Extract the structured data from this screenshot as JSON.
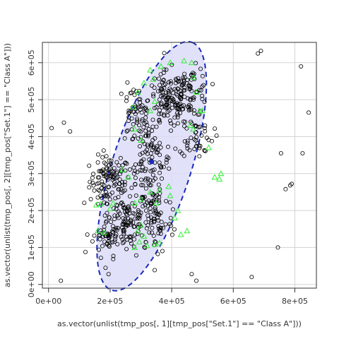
{
  "chart_data": {
    "type": "scatter",
    "title": "",
    "xlabel": "as.vector(unlist(tmp_pos[, 1][tmp_pos[\"Set.1\"] == \"Class A\"]))",
    "ylabel": "as.vector(unlist(tmp_pos[, 2][tmp_pos[\"Set.1\"] == \"Class A\"]))",
    "xlim": [
      -20000,
      870000
    ],
    "ylim": [
      -10000,
      655000
    ],
    "x_ticks": [
      0,
      200000,
      400000,
      600000,
      800000
    ],
    "x_tick_labels": [
      "0e+00",
      "2e+05",
      "4e+05",
      "6e+05",
      "8e+05"
    ],
    "y_ticks": [
      0,
      100000,
      200000,
      300000,
      400000,
      500000,
      600000
    ],
    "y_tick_labels": [
      "0e+00",
      "1e+05",
      "2e+05",
      "3e+05",
      "4e+05",
      "5e+05",
      "6e+05"
    ],
    "grid": true,
    "colors": {
      "points_black": "#000000",
      "points_green": "#33ee33",
      "ellipse_fill": "#dcdcf8",
      "ellipse_stroke": "#1a2bb8",
      "centroid": "#1a2bb8",
      "grid": "#d3d3d3"
    },
    "ellipse": {
      "center": [
        335000,
        320000
      ],
      "semi_major": 360000,
      "semi_minor": 125000,
      "angle_deg": 68
    },
    "centroid": [
      335000,
      332000
    ],
    "clusters": [
      {
        "cx": 200000,
        "cy": 280000,
        "rx": 60000,
        "ry": 60000,
        "n": 110
      },
      {
        "cx": 250000,
        "cy": 170000,
        "rx": 70000,
        "ry": 80000,
        "n": 120
      },
      {
        "cx": 330000,
        "cy": 330000,
        "rx": 60000,
        "ry": 90000,
        "n": 110
      },
      {
        "cx": 390000,
        "cy": 500000,
        "rx": 60000,
        "ry": 70000,
        "n": 110
      },
      {
        "cx": 460000,
        "cy": 520000,
        "rx": 55000,
        "ry": 60000,
        "n": 80
      },
      {
        "cx": 280000,
        "cy": 460000,
        "rx": 50000,
        "ry": 70000,
        "n": 60
      },
      {
        "cx": 350000,
        "cy": 180000,
        "rx": 50000,
        "ry": 90000,
        "n": 70
      },
      {
        "cx": 190000,
        "cy": 130000,
        "rx": 40000,
        "ry": 40000,
        "n": 40
      },
      {
        "cx": 480000,
        "cy": 400000,
        "rx": 50000,
        "ry": 50000,
        "n": 45
      }
    ],
    "outliers": [
      [
        10000,
        423000
      ],
      [
        50000,
        438000
      ],
      [
        70000,
        414000
      ],
      [
        120000,
        88000
      ],
      [
        170000,
        72000
      ],
      [
        185000,
        45000
      ],
      [
        195000,
        28000
      ],
      [
        465000,
        28000
      ],
      [
        480000,
        10000
      ],
      [
        660000,
        20000
      ],
      [
        680000,
        625000
      ],
      [
        690000,
        632000
      ],
      [
        745000,
        100000
      ],
      [
        755000,
        355000
      ],
      [
        770000,
        258000
      ],
      [
        785000,
        268000
      ],
      [
        790000,
        272000
      ],
      [
        820000,
        590000
      ],
      [
        825000,
        355000
      ],
      [
        845000,
        465000
      ],
      [
        40000,
        10000
      ]
    ],
    "green_points": [
      [
        155000,
        215000
      ],
      [
        170000,
        218000
      ],
      [
        160000,
        145000
      ],
      [
        180000,
        140000
      ],
      [
        200000,
        205000
      ],
      [
        210000,
        220000
      ],
      [
        280000,
        100000
      ],
      [
        295000,
        115000
      ],
      [
        310000,
        130000
      ],
      [
        320000,
        105000
      ],
      [
        345000,
        108000
      ],
      [
        360000,
        112000
      ],
      [
        290000,
        145000
      ],
      [
        300000,
        160000
      ],
      [
        280000,
        220000
      ],
      [
        300000,
        230000
      ],
      [
        330000,
        250000
      ],
      [
        360000,
        255000
      ],
      [
        390000,
        265000
      ],
      [
        395000,
        240000
      ],
      [
        410000,
        180000
      ],
      [
        420000,
        200000
      ],
      [
        300000,
        390000
      ],
      [
        280000,
        420000
      ],
      [
        275000,
        480000
      ],
      [
        290000,
        520000
      ],
      [
        310000,
        545000
      ],
      [
        330000,
        580000
      ],
      [
        340000,
        555000
      ],
      [
        365000,
        590000
      ],
      [
        395000,
        600000
      ],
      [
        440000,
        605000
      ],
      [
        465000,
        600000
      ],
      [
        470000,
        560000
      ],
      [
        480000,
        520000
      ],
      [
        490000,
        470000
      ],
      [
        500000,
        470000
      ],
      [
        460000,
        430000
      ],
      [
        470000,
        420000
      ],
      [
        330000,
        470000
      ],
      [
        345000,
        495000
      ],
      [
        520000,
        370000
      ],
      [
        540000,
        290000
      ],
      [
        555000,
        285000
      ],
      [
        560000,
        300000
      ],
      [
        450000,
        145000
      ],
      [
        430000,
        135000
      ],
      [
        260000,
        290000
      ],
      [
        240000,
        310000
      ],
      [
        350000,
        220000
      ]
    ]
  }
}
